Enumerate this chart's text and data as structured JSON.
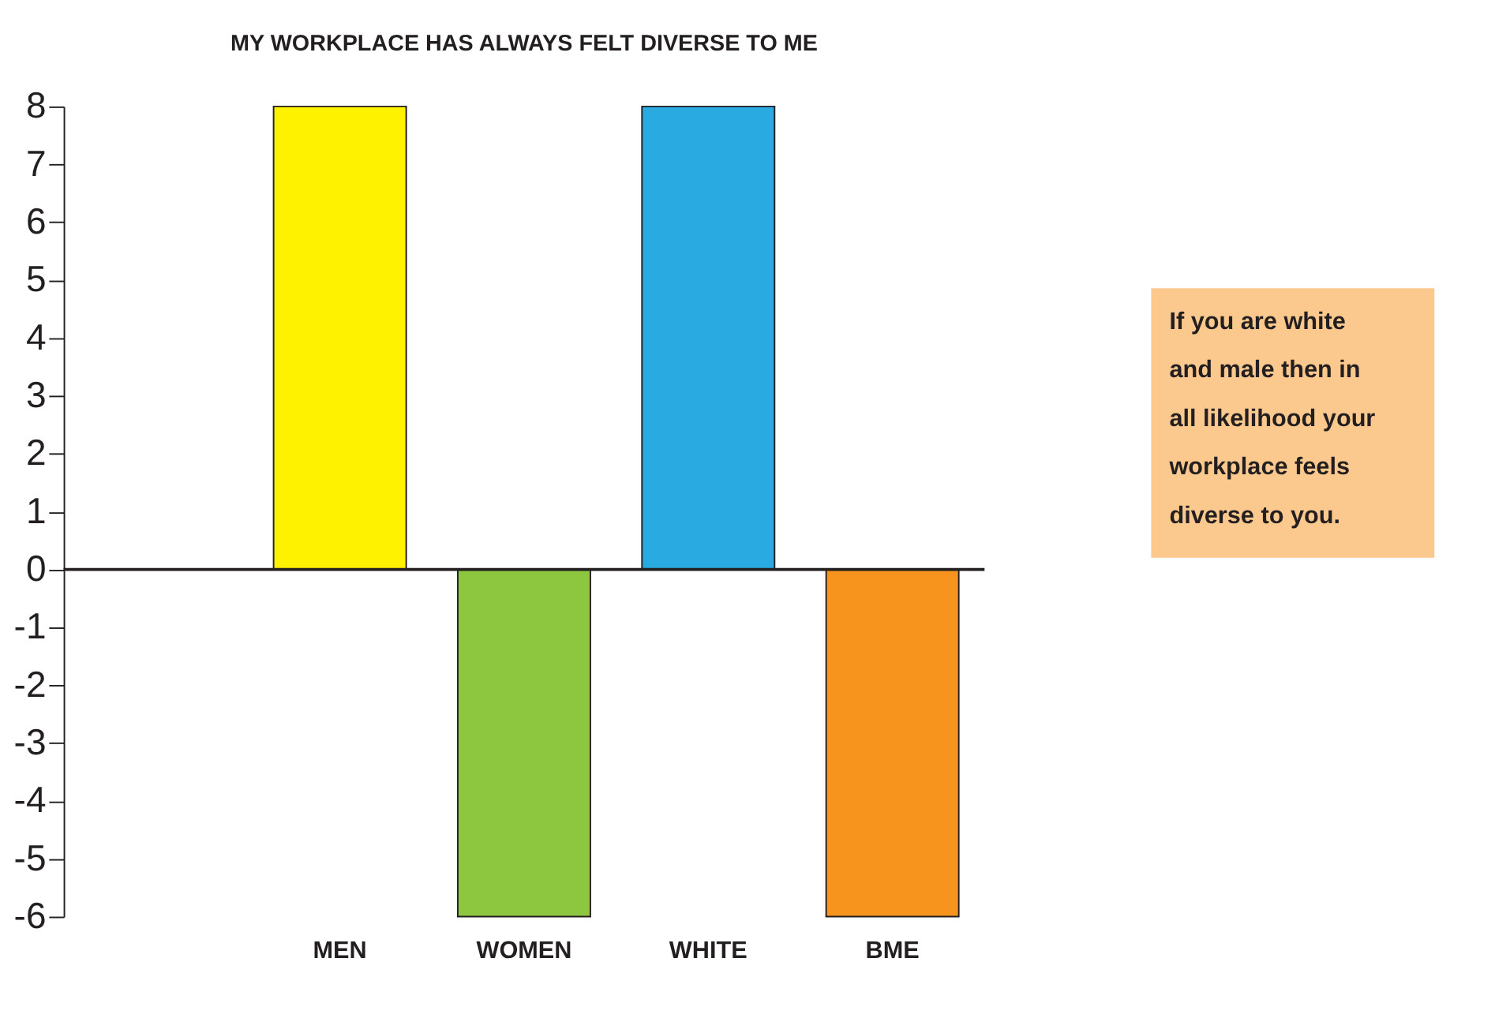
{
  "chart_data": {
    "type": "bar",
    "title": "MY WORKPLACE HAS ALWAYS FELT DIVERSE TO ME",
    "categories": [
      null,
      "MEN",
      "WOMEN",
      "WHITE",
      "BME"
    ],
    "values": [
      null,
      8,
      -6,
      8,
      -6
    ],
    "colors": [
      "#ffffff",
      "#fff200",
      "#8dc63f",
      "#29abe2",
      "#f7941d"
    ],
    "ylim": [
      -6,
      8
    ],
    "yticks": [
      -6,
      -5,
      -4,
      -3,
      -2,
      -1,
      0,
      1,
      2,
      3,
      4,
      5,
      6,
      7,
      8
    ],
    "ref_lines": [
      {
        "axis": "y",
        "value": 0,
        "color": "#231f20"
      }
    ],
    "annotations": [
      "If you are white and male then in all likelihood your workplace feels diverse to you."
    ],
    "grid": false
  }
}
